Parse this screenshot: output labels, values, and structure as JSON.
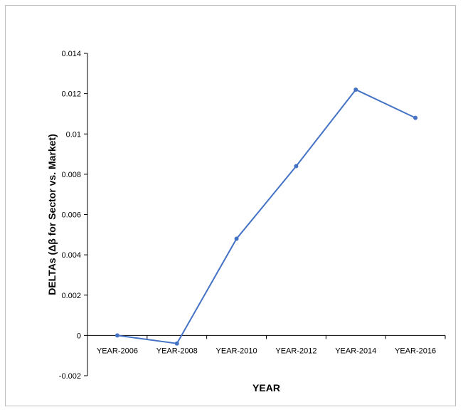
{
  "chart_data": {
    "type": "line",
    "title": "",
    "xlabel": "YEAR",
    "ylabel": "DELTAs (Δβ for Sector vs. Market)",
    "categories": [
      "YEAR-2006",
      "YEAR-2008",
      "YEAR-2010",
      "YEAR-2012",
      "YEAR-2014",
      "YEAR-2016"
    ],
    "series": [
      {
        "values": [
          0.0,
          -0.0004,
          0.0048,
          0.0084,
          0.0122,
          0.0108
        ]
      }
    ],
    "ylim": [
      -0.002,
      0.014
    ],
    "yticks": [
      -0.002,
      0,
      0.002,
      0.004,
      0.006,
      0.008,
      0.01,
      0.012,
      0.014
    ],
    "ytick_labels": [
      "-0.002",
      "0",
      "0.002",
      "0.004",
      "0.006",
      "0.008",
      "0.01",
      "0.012",
      "0.014"
    ],
    "grid": false,
    "legend": "none",
    "line_color": "#4472c4"
  }
}
